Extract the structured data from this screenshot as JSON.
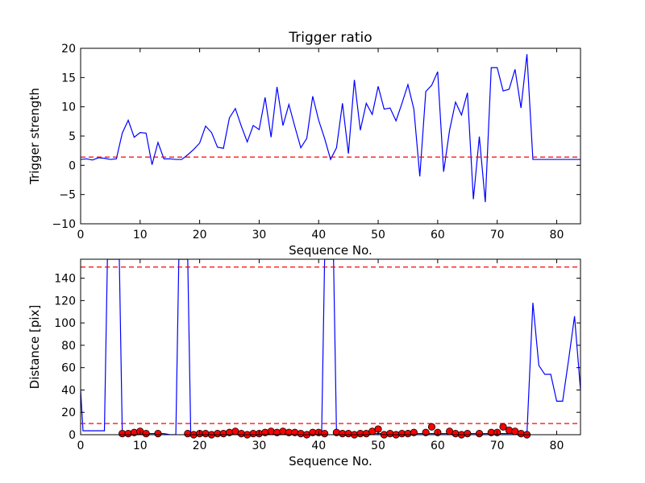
{
  "chart_data": [
    {
      "type": "line",
      "title": "Trigger ratio",
      "xlabel": "Sequence No.",
      "ylabel": "Trigger strength",
      "xlim": [
        0,
        84
      ],
      "ylim": [
        -10,
        20
      ],
      "xticks": [
        0,
        10,
        20,
        30,
        40,
        50,
        60,
        70,
        80
      ],
      "yticks": [
        -10,
        -5,
        0,
        5,
        10,
        15,
        20
      ],
      "ytick_labels": [
        "−10",
        "−5",
        "0",
        "5",
        "10",
        "15",
        "20"
      ],
      "grid": false,
      "series": [
        {
          "color": "#0000ff",
          "x": [
            0,
            1,
            2,
            3,
            4,
            5,
            6,
            7,
            8,
            9,
            10,
            11,
            12,
            13,
            14,
            15,
            16,
            17,
            18,
            19,
            20,
            21,
            22,
            23,
            24,
            25,
            26,
            27,
            28,
            29,
            30,
            31,
            32,
            33,
            34,
            35,
            36,
            37,
            38,
            39,
            40,
            41,
            42,
            43,
            44,
            45,
            46,
            47,
            48,
            49,
            50,
            51,
            52,
            53,
            54,
            55,
            56,
            57,
            58,
            59,
            60,
            61,
            62,
            63,
            64,
            65,
            66,
            67,
            68,
            69,
            70,
            71,
            72,
            73,
            74,
            75,
            76,
            77,
            78,
            79,
            80,
            81,
            82,
            83,
            84
          ],
          "y": [
            1.0,
            1.1,
            0.9,
            1.3,
            1.2,
            1.0,
            1.1,
            5.5,
            7.7,
            4.8,
            5.6,
            5.5,
            0.1,
            3.9,
            1.1,
            1.1,
            1.0,
            1.0,
            1.8,
            2.7,
            3.8,
            6.7,
            5.6,
            3.1,
            2.9,
            8.1,
            9.7,
            6.7,
            4.0,
            6.8,
            6.1,
            11.6,
            4.8,
            13.4,
            6.8,
            10.4,
            6.6,
            3.0,
            4.6,
            11.8,
            7.7,
            4.6,
            1.0,
            3.0,
            10.6,
            2.0,
            14.6,
            6.0,
            10.6,
            8.7,
            13.5,
            9.6,
            9.8,
            7.6,
            10.6,
            13.8,
            9.6,
            -1.9,
            12.6,
            13.7,
            16.0,
            -1.1,
            6.0,
            10.8,
            8.6,
            12.4,
            -5.8,
            4.9,
            -6.3,
            16.7,
            16.7,
            12.7,
            13.0,
            16.4,
            9.8,
            19.0,
            1.0,
            1.0,
            1.0,
            1.0,
            1.0,
            1.0,
            1.0,
            1.0,
            1.0
          ]
        }
      ],
      "reference_lines": [
        {
          "y": 1.4,
          "color": "#ff0000",
          "style": "dashed"
        }
      ]
    },
    {
      "type": "line",
      "title": "",
      "xlabel": "Sequence No.",
      "ylabel": "Distance [pix]",
      "xlim": [
        0,
        84
      ],
      "ylim": [
        0,
        157
      ],
      "xticks": [
        0,
        10,
        20,
        30,
        40,
        50,
        60,
        70,
        80
      ],
      "yticks": [
        0,
        20,
        40,
        60,
        80,
        100,
        120,
        140
      ],
      "grid": false,
      "series": [
        {
          "color": "#0000ff",
          "x": [
            0,
            0.4,
            2,
            4,
            4.5,
            5,
            5.5,
            6,
            6.5,
            7,
            8,
            9,
            10,
            11,
            12,
            13,
            14,
            15,
            16,
            16.5,
            17,
            17.5,
            18,
            18.5,
            19,
            20,
            21,
            22,
            23,
            24,
            25,
            26,
            27,
            28,
            29,
            30,
            31,
            32,
            33,
            34,
            35,
            36,
            37,
            38,
            39,
            40,
            40.5,
            41,
            41.5,
            42,
            42.5,
            43,
            44,
            45,
            46,
            47,
            48,
            49,
            50,
            51,
            52,
            53,
            54,
            55,
            56,
            57,
            58,
            59,
            60,
            61,
            62,
            63,
            64,
            65,
            66,
            67,
            68,
            69,
            70,
            71,
            72,
            73,
            74,
            75,
            76,
            77,
            78,
            79,
            80,
            81,
            82,
            83,
            84
          ],
          "y": [
            40,
            3.5,
            3.5,
            3.5,
            157,
            157,
            157,
            157,
            157,
            1,
            1,
            1,
            1,
            1,
            1,
            1,
            1,
            0,
            0,
            157,
            157,
            157,
            157,
            2,
            1,
            1,
            1,
            1,
            1,
            1,
            1,
            1,
            1,
            1,
            1,
            1,
            1,
            1,
            1,
            1,
            1,
            1,
            1,
            1,
            1,
            1,
            1,
            157,
            157,
            157,
            157,
            1,
            1,
            1,
            1,
            1,
            1,
            1,
            1,
            1,
            1,
            1,
            1,
            1,
            1,
            1,
            1,
            1,
            1,
            1,
            1,
            1,
            1,
            1,
            1,
            1,
            1,
            1,
            1,
            1,
            1,
            1,
            1,
            1,
            118,
            62,
            54,
            54,
            30,
            30,
            67,
            106,
            40
          ]
        }
      ],
      "markers": {
        "color": "#ff0000",
        "edge": "#000000",
        "x": [
          7,
          8,
          9,
          10,
          11,
          13,
          18,
          19,
          20,
          21,
          22,
          23,
          24,
          25,
          26,
          27,
          28,
          29,
          30,
          31,
          32,
          33,
          34,
          35,
          36,
          37,
          38,
          39,
          40,
          41,
          43,
          44,
          45,
          46,
          47,
          48,
          49,
          50,
          51,
          52,
          53,
          54,
          55,
          56,
          58,
          59,
          60,
          62,
          63,
          64,
          65,
          67,
          69,
          70,
          71,
          72,
          73,
          74,
          75
        ],
        "y": [
          1,
          1,
          2,
          3,
          1,
          1,
          1,
          0,
          1,
          1,
          0,
          1,
          1,
          2,
          3,
          1,
          0,
          1,
          1,
          2,
          3,
          2,
          3,
          2,
          2,
          1,
          0,
          2,
          2,
          1,
          2,
          1,
          1,
          0,
          1,
          1,
          3,
          5,
          0,
          1,
          0,
          1,
          1,
          2,
          2,
          7,
          2,
          3,
          1,
          0,
          1,
          1,
          2,
          2,
          7,
          4,
          3,
          1,
          0
        ]
      },
      "reference_lines": [
        {
          "y": 150,
          "color": "#ff0000",
          "style": "dashed"
        },
        {
          "y": 10,
          "color": "#ff0000",
          "style": "dashed"
        }
      ]
    }
  ]
}
